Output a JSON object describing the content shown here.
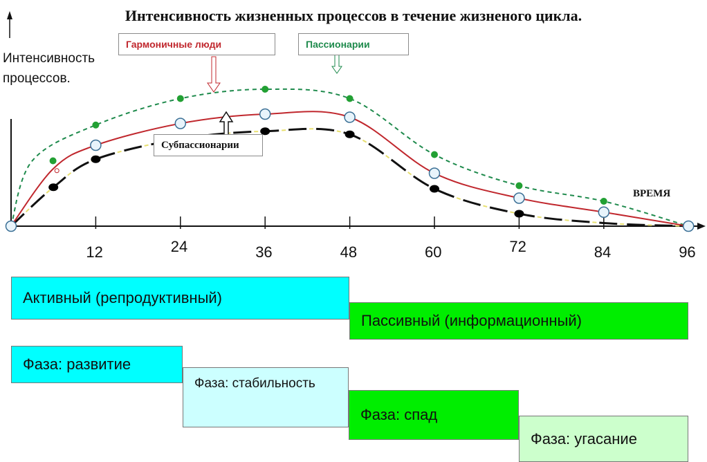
{
  "title": "Интенсивность жизненных процессов в течение жизненого цикла.",
  "y_axis_label": [
    "Интенсивность",
    "процессов."
  ],
  "x_axis_label": "ВРЕМЯ",
  "legend": {
    "harmonious": "Гармоничные люди",
    "passionary": "Пассионарии",
    "subpassionary": "Субпассионарии"
  },
  "colors": {
    "harmonious": "#c0272d",
    "passionary": "#1e8a4c",
    "passionary_points": "#22a033",
    "subpassionary_line": "#e8e070",
    "subpassionary_dash": "#111111",
    "axis": "#111111",
    "active_bar": "#00ffff",
    "passive_bar": "#00ee00",
    "phase_development": "#00ffff",
    "phase_stability": "#ccffff",
    "phase_decline": "#00ee00",
    "phase_fading": "#ccffcc"
  },
  "chart_data": {
    "type": "line",
    "title": "Интенсивность жизненных процессов в течение жизненого цикла.",
    "xlabel": "ВРЕМЯ",
    "ylabel": "Интенсивность процессов.",
    "x_ticks": [
      "12",
      "24",
      "36",
      "48",
      "60",
      "72",
      "84",
      "96"
    ],
    "xlim": [
      0,
      97
    ],
    "ylim": [
      0,
      11
    ],
    "series": [
      {
        "name": "Пассионарии",
        "x": [
          0,
          3,
          12,
          24,
          36,
          48,
          60,
          72,
          84,
          96
        ],
        "y": [
          0,
          4.2,
          6.5,
          8.2,
          8.8,
          8.2,
          4.6,
          2.6,
          1.6,
          0
        ]
      },
      {
        "name": "Гармоничные люди",
        "x": [
          0,
          6,
          12,
          24,
          36,
          48,
          60,
          72,
          84,
          96
        ],
        "y": [
          0,
          3.7,
          5.2,
          6.6,
          7.2,
          7.0,
          3.4,
          1.8,
          0.9,
          0
        ]
      },
      {
        "name": "Субпассионарии",
        "x": [
          0,
          6,
          12,
          24,
          36,
          48,
          60,
          72,
          84,
          96
        ],
        "y": [
          0,
          2.5,
          4.3,
          5.6,
          6.1,
          5.9,
          2.4,
          0.8,
          0.2,
          0
        ]
      }
    ]
  },
  "periods": [
    {
      "label": "Активный (репродуктивный)",
      "from": 0,
      "to": 48
    },
    {
      "label": "Пассивный (информационный)",
      "from": 48,
      "to": 96
    }
  ],
  "phases": [
    {
      "label": "Фаза: развитие",
      "from": 0,
      "to": 24
    },
    {
      "label": "Фаза: стабильность",
      "from": 24,
      "to": 48
    },
    {
      "label": "Фаза:  спад",
      "from": 48,
      "to": 72
    },
    {
      "label": "Фаза: угасание",
      "from": 72,
      "to": 96
    }
  ]
}
